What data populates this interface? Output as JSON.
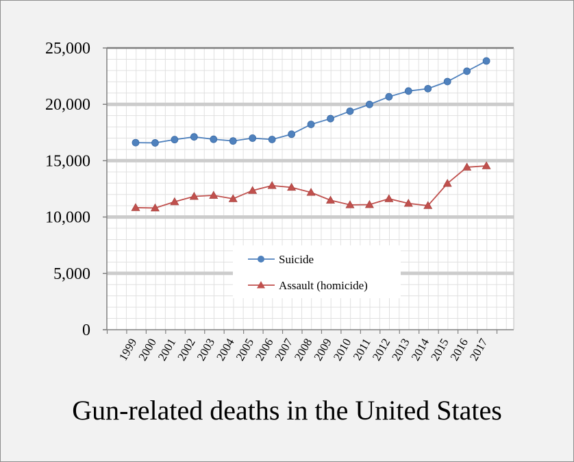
{
  "chart_data": {
    "type": "line",
    "title": "Gun-related deaths in the United States",
    "xlabel": "",
    "ylabel": "",
    "x": [
      "1999",
      "2000",
      "2001",
      "2002",
      "2003",
      "2004",
      "2005",
      "2006",
      "2007",
      "2008",
      "2009",
      "2010",
      "2011",
      "2012",
      "2013",
      "2014",
      "2015",
      "2016",
      "2017"
    ],
    "ylim": [
      0,
      25000
    ],
    "yticks": [
      "0",
      "5,000",
      "10,000",
      "15,000",
      "20,000",
      "25,000"
    ],
    "ytick_values": [
      0,
      5000,
      10000,
      15000,
      20000,
      25000
    ],
    "grid": true,
    "legend_position": "center",
    "series": [
      {
        "name": "Suicide",
        "color": "#4f81bd",
        "marker": "circle",
        "values": [
          16600,
          16580,
          16870,
          17110,
          16900,
          16750,
          17000,
          16880,
          17350,
          18220,
          18730,
          19390,
          19990,
          20670,
          21180,
          21390,
          22020,
          22940,
          23850
        ]
      },
      {
        "name": "Assault (homicide)",
        "color": "#c0504d",
        "marker": "triangle",
        "values": [
          10830,
          10800,
          11350,
          11830,
          11920,
          11620,
          12350,
          12790,
          12630,
          12180,
          11490,
          11080,
          11100,
          11620,
          11210,
          11010,
          12980,
          14420,
          14540
        ]
      }
    ]
  }
}
